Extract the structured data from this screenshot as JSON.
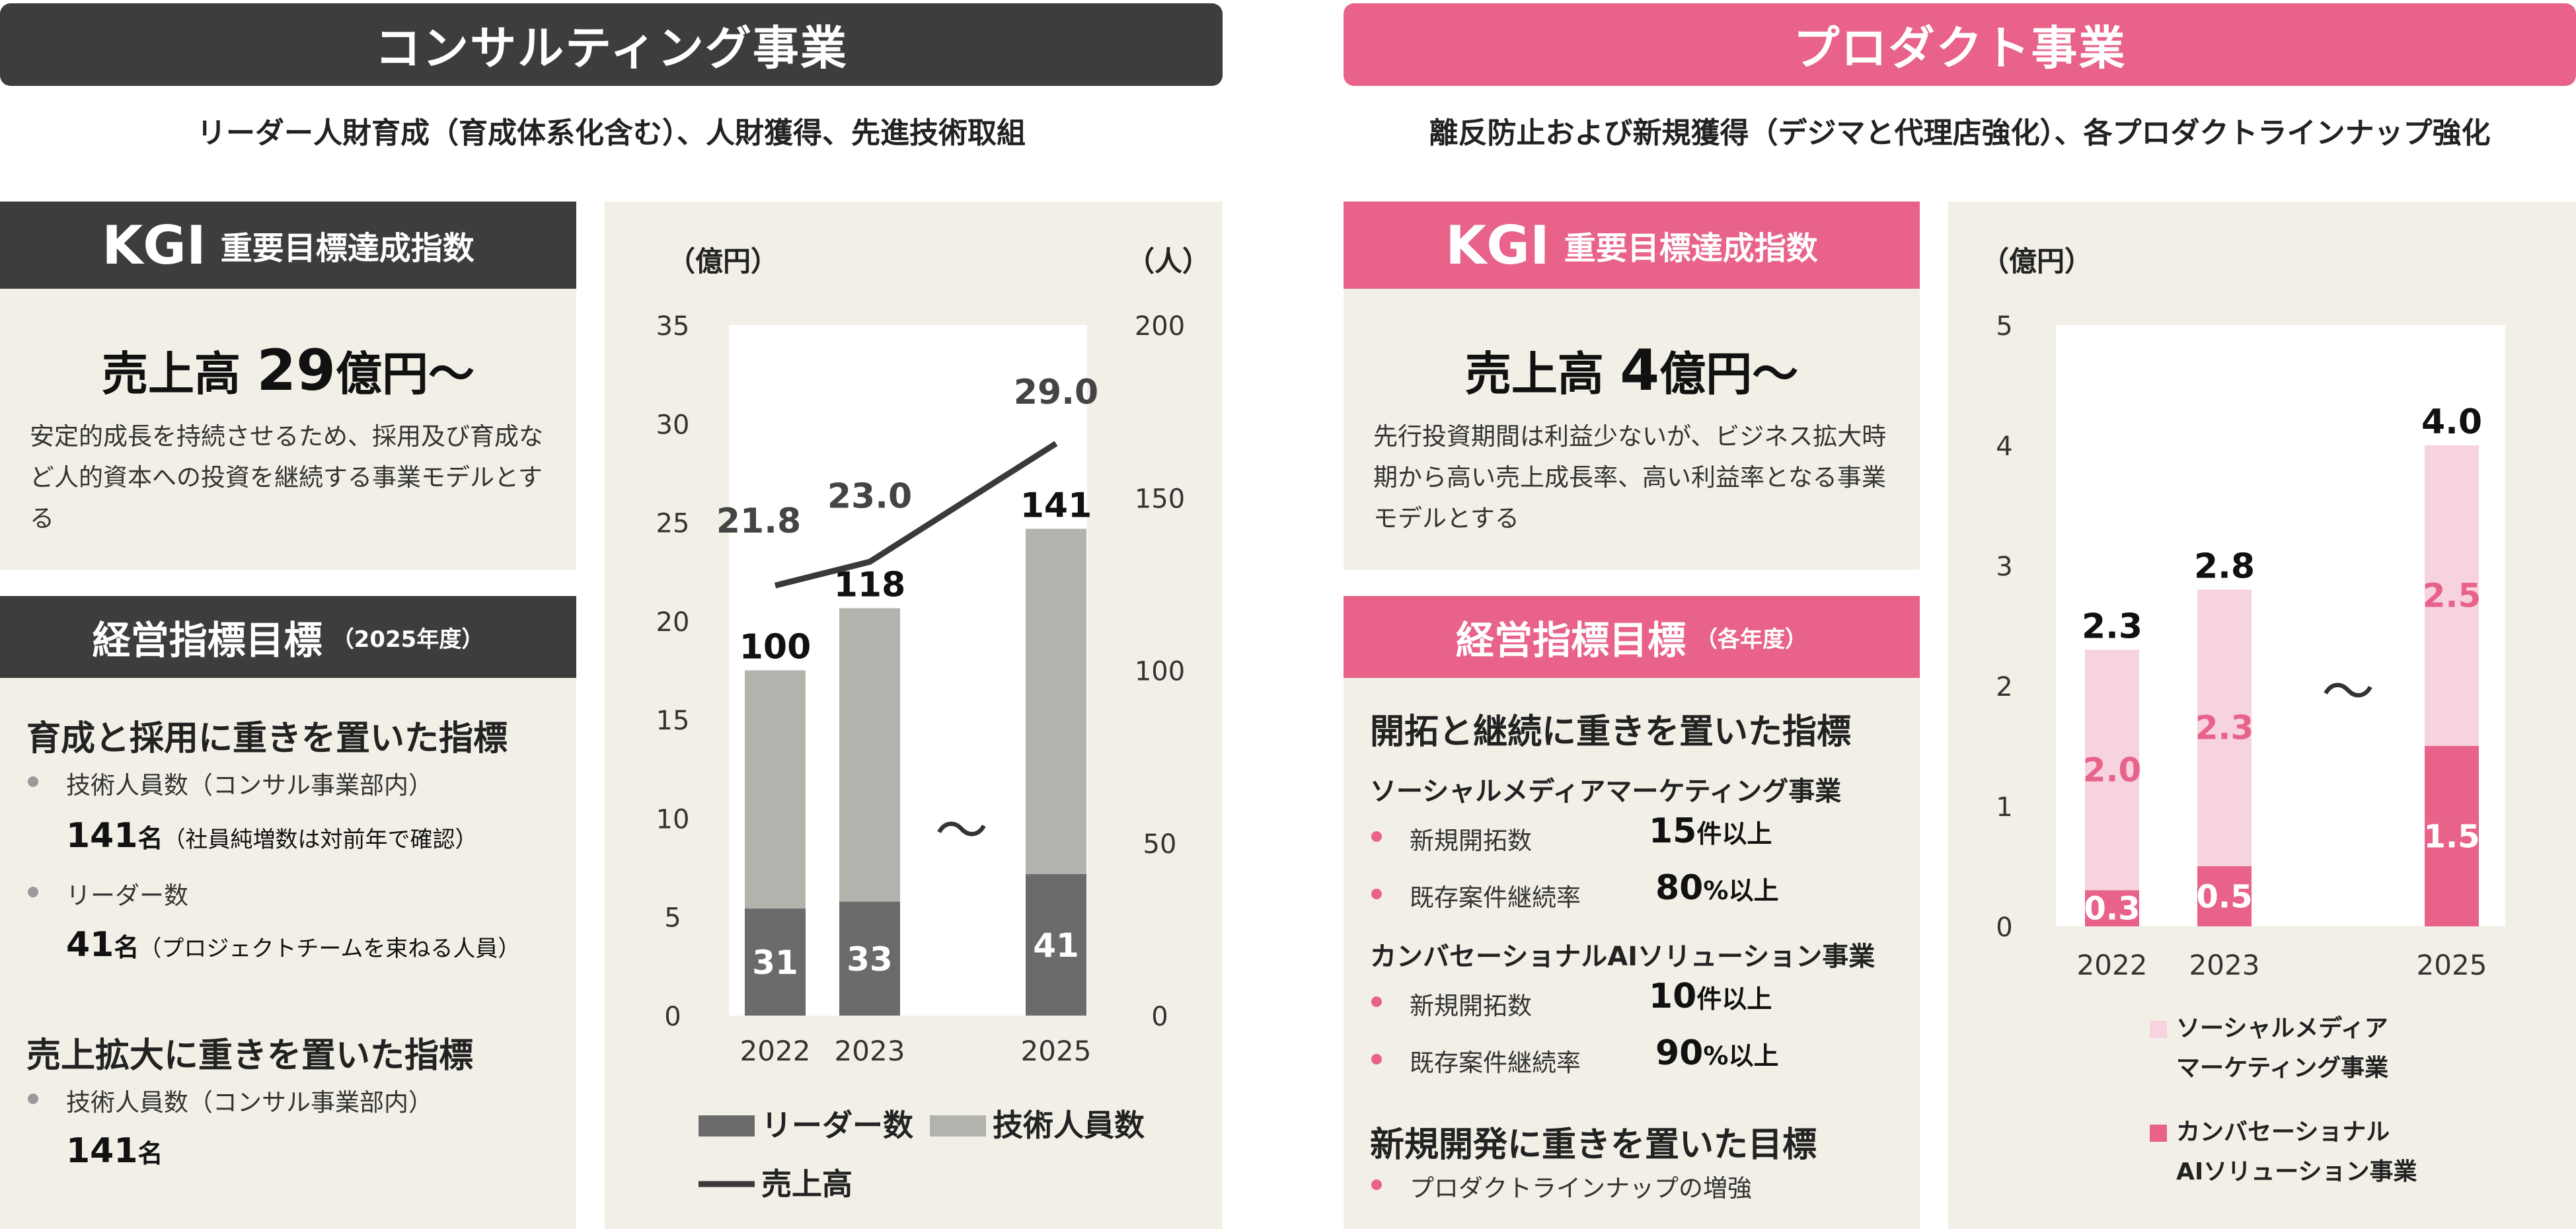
{
  "left": {
    "banner": "コンサルティング事業",
    "subtitle": "リーダー人財育成（育成体系化含む）、人財獲得、先進技術取組",
    "kgi": {
      "label": "KGI",
      "label_sub": "重要目標達成指数",
      "main_prefix": "売上高",
      "main_num": "29",
      "main_suffix": "億円～",
      "desc": "安定的成長を持続させるため、採用及び育成など人的資本への投資を継続する事業モデルとする"
    },
    "mgmt": {
      "title": "経営指標目標",
      "title_sub": "（2025年度）",
      "section1": "育成と採用に重きを置いた指標",
      "b1": "技術人員数（コンサル事業部内）",
      "v1": "141",
      "v1_unit": "名",
      "v1_note": "（社員純増数は対前年で確認）",
      "b2": "リーダー数",
      "v2": "41",
      "v2_unit": "名",
      "v2_note": "（プロジェクトチームを束ねる人員）",
      "section2": "売上拡大に重きを置いた指標",
      "b3": "技術人員数（コンサル事業部内）",
      "v3": "141",
      "v3_unit": "名"
    }
  },
  "right": {
    "banner": "プロダクト事業",
    "subtitle": "離反防止および新規獲得（デジマと代理店強化）、各プロダクトラインナップ強化",
    "kgi": {
      "label": "KGI",
      "label_sub": "重要目標達成指数",
      "main_prefix": "売上高",
      "main_num": "4",
      "main_suffix": "億円～",
      "desc": "先行投資期間は利益少ないが、ビジネス拡大時期から高い売上成長率、高い利益率となる事業モデルとする"
    },
    "mgmt": {
      "title": "経営指標目標",
      "title_sub": "（各年度）",
      "section1": "開拓と継続に重きを置いた指標",
      "sub1": "ソーシャルメディアマーケティング事業",
      "b1": "新規開拓数",
      "v1": "15",
      "v1_unit": "件以上",
      "b2": "既存案件継続率",
      "v2": "80",
      "v2_unit": "%以上",
      "sub2": "カンバセーショナルAIソリューション事業",
      "b3": "新規開拓数",
      "v3": "10",
      "v3_unit": "件以上",
      "b4": "既存案件継続率",
      "v4": "90",
      "v4_unit": "%以上",
      "section2": "新規開発に重きを置いた目標",
      "b5": "プロダクトラインナップの増強"
    }
  },
  "colors": {
    "dark": "#3d3d3d",
    "pink": "#e8628a",
    "panel": "#f2f0e6",
    "leader": "#6b6b6b",
    "tech": "#b3b3ae",
    "pink_light": "#f6d3df",
    "line": "#3a3a3a"
  },
  "chart_data": [
    {
      "type": "bar",
      "categories": [
        "2022",
        "2023",
        "2025"
      ],
      "break_symbol": "～",
      "ylabel": "（億円）",
      "y2label": "（人）",
      "ylim": [
        0,
        35
      ],
      "y2lim": [
        0,
        200
      ],
      "yticks": [
        "0",
        "5",
        "10",
        "15",
        "20",
        "25",
        "30",
        "35"
      ],
      "y2ticks": [
        "0",
        "50",
        "100",
        "150",
        "200"
      ],
      "series": [
        {
          "name": "リーダー数",
          "axis": "right",
          "stack": true,
          "values": [
            31,
            33,
            41
          ],
          "labels": [
            "31",
            "33",
            "41"
          ]
        },
        {
          "name": "技術人員数",
          "axis": "right",
          "stack": true,
          "values": [
            69,
            85,
            100
          ]
        },
        {
          "name": "売上高",
          "axis": "left",
          "type": "line",
          "values": [
            21.8,
            23.0,
            29.0
          ],
          "labels": [
            "21.8",
            "23.0",
            "29.0"
          ]
        }
      ],
      "totals": [
        "100",
        "118",
        "141"
      ],
      "legend": [
        "リーダー数",
        "技術人員数",
        "売上高"
      ]
    },
    {
      "type": "bar",
      "categories": [
        "2022",
        "2023",
        "2025"
      ],
      "break_symbol": "～",
      "ylabel": "（億円）",
      "ylim": [
        0,
        5
      ],
      "yticks": [
        "0",
        "1",
        "2",
        "3",
        "4",
        "5"
      ],
      "series": [
        {
          "name": "カンバセーショナルAIソリューション事業",
          "stack": true,
          "values": [
            0.3,
            0.5,
            1.5
          ],
          "labels": [
            "0.3",
            "0.5",
            "1.5"
          ]
        },
        {
          "name": "ソーシャルメディアマーケティング事業",
          "stack": true,
          "values": [
            2.0,
            2.3,
            2.5
          ],
          "labels": [
            "2.0",
            "2.3",
            "2.5"
          ]
        }
      ],
      "totals": [
        "2.3",
        "2.8",
        "4.0"
      ],
      "legend": [
        {
          "line1": "ソーシャルメディア",
          "line2": "マーケティング事業"
        },
        {
          "line1": "カンバセーショナル",
          "line2": "AIソリューション事業"
        }
      ]
    }
  ]
}
